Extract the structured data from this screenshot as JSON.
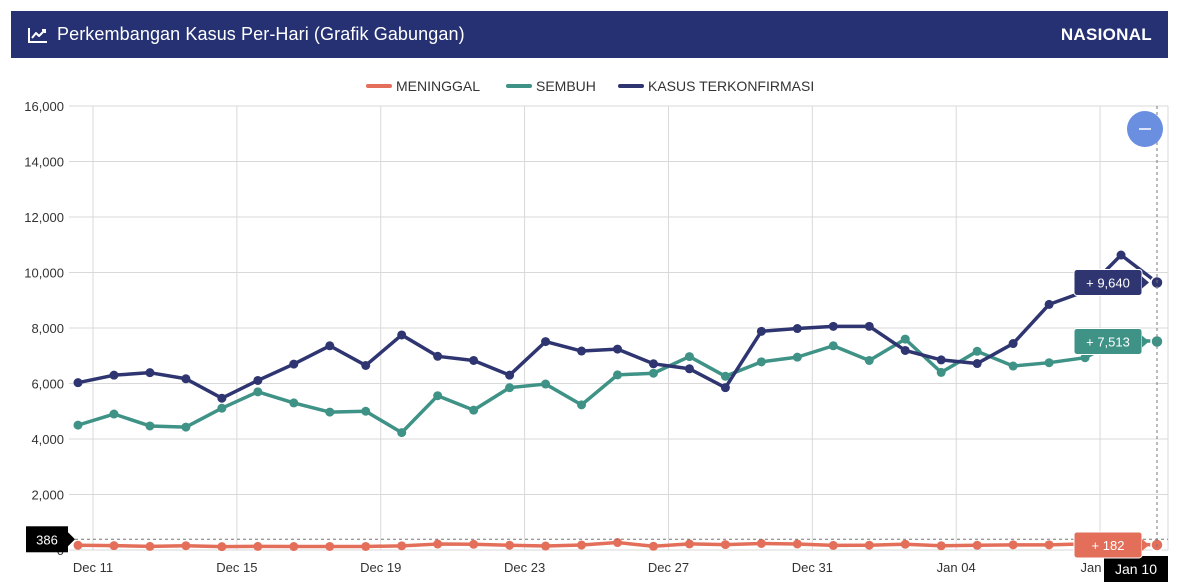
{
  "header": {
    "title": "Perkembangan Kasus Per-Hari (Grafik Gabungan)",
    "region": "NASIONAL",
    "icon": "line-chart-icon"
  },
  "zoom_button_icon": "minus-icon",
  "crosshair": {
    "y_readout": "386",
    "x_readout": "Jan 10"
  },
  "chart_data": {
    "type": "line",
    "x": [
      "Dec 11",
      "Dec 12",
      "Dec 13",
      "Dec 14",
      "Dec 15",
      "Dec 16",
      "Dec 17",
      "Dec 18",
      "Dec 19",
      "Dec 20",
      "Dec 21",
      "Dec 22",
      "Dec 23",
      "Dec 24",
      "Dec 25",
      "Dec 26",
      "Dec 27",
      "Dec 28",
      "Dec 29",
      "Dec 30",
      "Dec 31",
      "Jan 01",
      "Jan 02",
      "Jan 03",
      "Jan 04",
      "Jan 05",
      "Jan 06",
      "Jan 07",
      "Jan 08",
      "Jan 09",
      "Jan 10"
    ],
    "x_tick_labels": [
      "Dec 11",
      "Dec 15",
      "Dec 19",
      "Dec 23",
      "Dec 27",
      "Dec 31",
      "Jan 04",
      "Jan 08"
    ],
    "y_tick_labels": [
      "0",
      "2,000",
      "4,000",
      "6,000",
      "8,000",
      "10,000",
      "12,000",
      "14,000",
      "16,000"
    ],
    "ylim": [
      0,
      16000
    ],
    "grid": true,
    "legend_position": "top-center",
    "series": [
      {
        "name": "MENINGGAL",
        "color": "#e36f5b",
        "values": [
          169,
          157,
          130,
          155,
          120,
          130,
          125,
          128,
          127,
          150,
          214,
          206,
          171,
          143,
          179,
          269,
          134,
          219,
          195,
          236,
          218,
          165,
          173,
          208,
          152,
          169,
          185,
          185,
          221,
          224,
          182
        ],
        "last_label": "+ 182"
      },
      {
        "name": "SEMBUH",
        "color": "#3e9286",
        "values": [
          4500,
          4900,
          4470,
          4430,
          5110,
          5700,
          5300,
          4970,
          5000,
          4230,
          5560,
          5040,
          5850,
          5980,
          5230,
          6310,
          6370,
          6970,
          6260,
          6780,
          6950,
          7360,
          6830,
          7600,
          6400,
          7160,
          6630,
          6750,
          6930,
          7600,
          7513
        ],
        "last_label": "+ 7,513"
      },
      {
        "name": "KASUS TERKONFIRMASI",
        "color": "#2e3570",
        "values": [
          6030,
          6300,
          6390,
          6170,
          5470,
          6110,
          6700,
          7360,
          6650,
          7750,
          6980,
          6830,
          6300,
          7510,
          7170,
          7240,
          6710,
          6530,
          5850,
          7880,
          7980,
          8060,
          8060,
          7190,
          6850,
          6720,
          7440,
          8850,
          9320,
          10630,
          9640
        ],
        "last_label": "+ 9,640"
      }
    ]
  }
}
